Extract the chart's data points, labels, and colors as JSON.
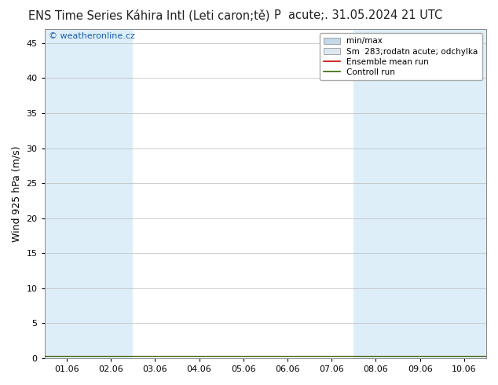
{
  "title_left": "ENS Time Series Káhira Intl (Leti caron;tě)",
  "title_right": "P  acute;. 31.05.2024 21 UTC",
  "ylabel": "Wind 925 hPa (m/s)",
  "watermark": "© weatheronline.cz",
  "xlabels": [
    "01.06",
    "02.06",
    "03.06",
    "04.06",
    "05.06",
    "06.06",
    "07.06",
    "08.06",
    "09.06",
    "10.06"
  ],
  "ylim": [
    0,
    47
  ],
  "yticks": [
    0,
    5,
    10,
    15,
    20,
    25,
    30,
    35,
    40,
    45
  ],
  "legend_items": [
    {
      "label": "min/max",
      "color": "#c5d8e8",
      "type": "fill_line"
    },
    {
      "label": "Sm  283;rodatn acute; odchylka",
      "color": "#dce8f0",
      "type": "fill_line"
    },
    {
      "label": "Ensemble mean run",
      "color": "#cc0000",
      "type": "line"
    },
    {
      "label": "Controll run",
      "color": "#336600",
      "type": "line"
    }
  ],
  "shaded_columns": [
    0,
    1,
    7,
    8,
    9
  ],
  "shade_color": "#ddeef8",
  "background_color": "#ffffff",
  "plot_bg_color": "#ffffff",
  "grid_color": "#bbbbbb",
  "title_fontsize": 10.5,
  "ylabel_fontsize": 9,
  "tick_fontsize": 8,
  "legend_fontsize": 7.5,
  "watermark_color": "#1a5faa",
  "watermark_fontsize": 8
}
